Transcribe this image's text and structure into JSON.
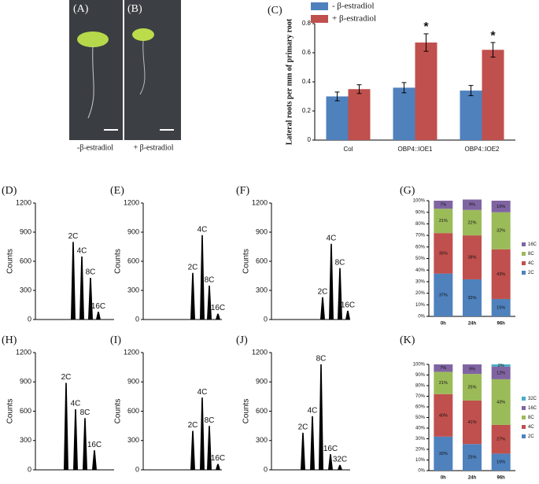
{
  "photos": [
    {
      "label": "(A)",
      "caption": "-β-estradiol"
    },
    {
      "label": "(B)",
      "caption": "+ β-estradiol"
    }
  ],
  "chart_data": [
    {
      "type": "bar",
      "label": "(C)",
      "y_label": "Lateral roots per mm of primary root",
      "categories": [
        "Col",
        "OBP4::IOE1",
        "OBP4::IOE2"
      ],
      "series": [
        {
          "name": "- β-estradiol",
          "color": "#4f81bd",
          "values": [
            0.3,
            0.36,
            0.34
          ],
          "errors": [
            0.03,
            0.035,
            0.035
          ]
        },
        {
          "name": "+ β-estradiol",
          "color": "#c0504d",
          "values": [
            0.35,
            0.67,
            0.62
          ],
          "errors": [
            0.03,
            0.06,
            0.05
          ],
          "markers": [
            null,
            "*",
            "*"
          ]
        }
      ],
      "ylim": [
        0,
        0.8
      ],
      "yticks": [
        0,
        0.2,
        0.4,
        0.6,
        0.8
      ],
      "legend": "top-left"
    },
    {
      "type": "histogram",
      "label": "(D)",
      "y_label": "Counts",
      "xlim": [
        0,
        100
      ],
      "x": [
        48,
        59,
        70,
        80
      ],
      "values": [
        800,
        650,
        430,
        80
      ],
      "peak_labels": [
        "2C",
        "4C",
        "8C",
        "16C"
      ],
      "ylim": [
        0,
        1200
      ],
      "yticks": [
        0,
        300,
        600,
        900,
        1200
      ],
      "color": "#000000"
    },
    {
      "type": "histogram",
      "label": "(E)",
      "y_label": "Counts",
      "xlim": [
        0,
        100
      ],
      "x": [
        63,
        75,
        84,
        95
      ],
      "values": [
        480,
        870,
        350,
        60
      ],
      "peak_labels": [
        "2C",
        "4C",
        "8C",
        "16C"
      ],
      "ylim": [
        0,
        1200
      ],
      "yticks": [
        0,
        300,
        600,
        900,
        1200
      ],
      "color": "#000000"
    },
    {
      "type": "histogram",
      "label": "(F)",
      "y_label": "Counts",
      "xlim": [
        0,
        100
      ],
      "x": [
        65,
        76,
        87,
        97
      ],
      "values": [
        230,
        780,
        530,
        90
      ],
      "peak_labels": [
        "2C",
        "4C",
        "8C",
        "16C"
      ],
      "ylim": [
        0,
        1200
      ],
      "yticks": [
        0,
        300,
        600,
        900,
        1200
      ],
      "color": "#000000"
    },
    {
      "type": "stacked",
      "label": "(G)",
      "categories": [
        "0h",
        "24h",
        "96h"
      ],
      "series": [
        {
          "name": "2C",
          "color": "#4f81bd",
          "values": [
            37,
            32,
            15
          ],
          "value_labels": [
            "37%",
            "32%",
            "15%"
          ]
        },
        {
          "name": "4C",
          "color": "#c0504d",
          "values": [
            35,
            38,
            43
          ],
          "value_labels": [
            "35%",
            "38%",
            "43%"
          ]
        },
        {
          "name": "8C",
          "color": "#9bbb59",
          "values": [
            21,
            22,
            32
          ],
          "value_labels": [
            "21%",
            "22%",
            "32%"
          ]
        },
        {
          "name": "16C",
          "color": "#8064a2",
          "values": [
            7,
            9,
            10
          ],
          "value_labels": [
            "7%",
            "9%",
            "10%"
          ]
        }
      ],
      "ylim": [
        0,
        100
      ],
      "yticks": [
        {
          "value": 0,
          "label": "0%"
        },
        {
          "value": 10,
          "label": "10%"
        },
        {
          "value": 20,
          "label": "20%"
        },
        {
          "value": 30,
          "label": "30%"
        },
        {
          "value": 40,
          "label": "40%"
        },
        {
          "value": 50,
          "label": "50%"
        },
        {
          "value": 60,
          "label": "60%"
        },
        {
          "value": 70,
          "label": "70%"
        },
        {
          "value": 80,
          "label": "80%"
        },
        {
          "value": 90,
          "label": "90%"
        },
        {
          "value": 100,
          "label": "100%"
        }
      ],
      "legend": "right"
    },
    {
      "type": "histogram",
      "label": "(H)",
      "y_label": "Counts",
      "xlim": [
        0,
        100
      ],
      "x": [
        39,
        51,
        63,
        75
      ],
      "values": [
        890,
        620,
        530,
        200
      ],
      "peak_labels": [
        "2C",
        "4C",
        "8C",
        "16C"
      ],
      "ylim": [
        0,
        1200
      ],
      "yticks": [
        0,
        300,
        600,
        900,
        1200
      ],
      "color": "#000000"
    },
    {
      "type": "histogram",
      "label": "(I)",
      "y_label": "Counts",
      "xlim": [
        0,
        100
      ],
      "x": [
        63,
        75,
        84,
        95
      ],
      "values": [
        400,
        740,
        450,
        60
      ],
      "peak_labels": [
        "2C",
        "4C",
        "8C",
        "16C"
      ],
      "ylim": [
        0,
        1200
      ],
      "yticks": [
        0,
        300,
        600,
        900,
        1200
      ],
      "color": "#000000"
    },
    {
      "type": "histogram",
      "label": "(J)",
      "y_label": "Counts",
      "xlim": [
        0,
        100
      ],
      "x": [
        40,
        52,
        63,
        75,
        87
      ],
      "values": [
        380,
        550,
        1080,
        160,
        50
      ],
      "peak_labels": [
        "2C",
        "4C",
        "8C",
        "16C",
        "32C"
      ],
      "ylim": [
        0,
        1200
      ],
      "yticks": [
        0,
        300,
        600,
        900,
        1200
      ],
      "color": "#000000"
    },
    {
      "type": "stacked",
      "label": "(K)",
      "categories": [
        "0h",
        "24h",
        "96h"
      ],
      "series": [
        {
          "name": "2C",
          "color": "#4f81bd",
          "values": [
            32,
            25,
            16
          ],
          "value_labels": [
            "32%",
            "25%",
            "16%"
          ]
        },
        {
          "name": "4C",
          "color": "#c0504d",
          "values": [
            40,
            41,
            27
          ],
          "value_labels": [
            "40%",
            "41%",
            "27%"
          ]
        },
        {
          "name": "8C",
          "color": "#9bbb59",
          "values": [
            21,
            25,
            43
          ],
          "value_labels": [
            "21%",
            "25%",
            "43%"
          ]
        },
        {
          "name": "16C",
          "color": "#8064a2",
          "values": [
            7,
            9,
            12
          ],
          "value_labels": [
            "7%",
            "9%",
            "12%"
          ]
        },
        {
          "name": "32C",
          "color": "#4bacc6",
          "values": [
            0,
            0,
            2
          ],
          "value_labels": [
            null,
            null,
            "2%"
          ]
        }
      ],
      "ylim": [
        0,
        100
      ],
      "yticks": [
        {
          "value": 0,
          "label": "0%"
        },
        {
          "value": 10,
          "label": "10%"
        },
        {
          "value": 20,
          "label": "20%"
        },
        {
          "value": 30,
          "label": "30%"
        },
        {
          "value": 40,
          "label": "40%"
        },
        {
          "value": 50,
          "label": "50%"
        },
        {
          "value": 60,
          "label": "60%"
        },
        {
          "value": 70,
          "label": "70%"
        },
        {
          "value": 80,
          "label": "80%"
        },
        {
          "value": 90,
          "label": "90%"
        },
        {
          "value": 100,
          "label": "100%"
        }
      ],
      "legend": "right"
    }
  ]
}
